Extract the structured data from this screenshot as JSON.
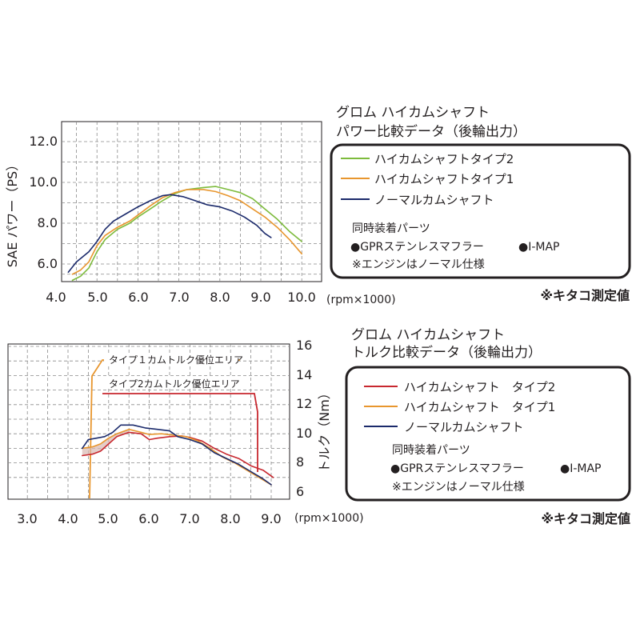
{
  "chart_data": [
    {
      "type": "line",
      "title_lines": [
        "グロム ハイカムシャフト",
        "パワー比較データ（後輪出力）"
      ],
      "xlabel": "(rpm×1000)",
      "ylabel": "SAE パワー（PS）",
      "x_ticks": [
        "4.0",
        "5.0",
        "6.0",
        "7.0",
        "8.0",
        "9.0",
        "10.0"
      ],
      "y_ticks": [
        "6.0",
        "8.0",
        "10.0",
        "12.0"
      ],
      "xlim": [
        4.0,
        10.3
      ],
      "ylim": [
        5.2,
        13.2
      ],
      "grid": true,
      "legend_position": "right",
      "series": [
        {
          "name": "ハイカムシャフトタイプ2",
          "color": "#7dbb3c",
          "points": [
            [
              4.4,
              5.2
            ],
            [
              4.6,
              5.4
            ],
            [
              4.8,
              5.8
            ],
            [
              5.0,
              6.6
            ],
            [
              5.2,
              7.2
            ],
            [
              5.5,
              7.7
            ],
            [
              5.8,
              8.0
            ],
            [
              6.0,
              8.3
            ],
            [
              6.3,
              8.7
            ],
            [
              6.6,
              9.1
            ],
            [
              6.9,
              9.45
            ],
            [
              7.2,
              9.65
            ],
            [
              7.6,
              9.75
            ],
            [
              7.9,
              9.8
            ],
            [
              8.2,
              9.65
            ],
            [
              8.5,
              9.5
            ],
            [
              8.8,
              9.2
            ],
            [
              9.1,
              8.7
            ],
            [
              9.4,
              8.2
            ],
            [
              9.7,
              7.6
            ],
            [
              10.0,
              7.1
            ]
          ]
        },
        {
          "name": "ハイカムシャフトタイプ1",
          "color": "#e8962e",
          "points": [
            [
              4.4,
              5.5
            ],
            [
              4.6,
              5.7
            ],
            [
              4.8,
              6.1
            ],
            [
              5.0,
              6.9
            ],
            [
              5.2,
              7.4
            ],
            [
              5.5,
              7.8
            ],
            [
              5.8,
              8.1
            ],
            [
              6.0,
              8.4
            ],
            [
              6.3,
              8.85
            ],
            [
              6.6,
              9.25
            ],
            [
              6.9,
              9.5
            ],
            [
              7.2,
              9.65
            ],
            [
              7.6,
              9.65
            ],
            [
              7.9,
              9.55
            ],
            [
              8.2,
              9.35
            ],
            [
              8.5,
              9.1
            ],
            [
              8.8,
              8.7
            ],
            [
              9.1,
              8.3
            ],
            [
              9.4,
              7.8
            ],
            [
              9.7,
              7.2
            ],
            [
              10.0,
              6.5
            ]
          ]
        },
        {
          "name": "ノーマルカムシャフト",
          "color": "#1b2a6b",
          "points": [
            [
              4.3,
              5.6
            ],
            [
              4.5,
              6.1
            ],
            [
              4.8,
              6.6
            ],
            [
              5.0,
              7.1
            ],
            [
              5.2,
              7.7
            ],
            [
              5.4,
              8.1
            ],
            [
              5.7,
              8.45
            ],
            [
              6.0,
              8.8
            ],
            [
              6.3,
              9.1
            ],
            [
              6.6,
              9.35
            ],
            [
              6.8,
              9.4
            ],
            [
              7.1,
              9.3
            ],
            [
              7.4,
              9.1
            ],
            [
              7.7,
              8.9
            ],
            [
              8.0,
              8.8
            ],
            [
              8.3,
              8.6
            ],
            [
              8.6,
              8.3
            ],
            [
              8.9,
              7.9
            ],
            [
              9.1,
              7.5
            ],
            [
              9.25,
              7.3
            ]
          ]
        }
      ],
      "legend_title": "同時装着パーツ",
      "parts": [
        "●GPRステンレスマフラー",
        "●I-MAP"
      ],
      "note": "※エンジンはノーマル仕様",
      "source": "※キタコ測定値"
    },
    {
      "type": "line",
      "title_lines": [
        "グロム ハイカムシャフト",
        "トルク比較データ（後輪出力）"
      ],
      "xlabel": "(rpm×1000)",
      "ylabel": "トルク（Nm）",
      "x_ticks": [
        "3.0",
        "4.0",
        "5.0",
        "6.0",
        "7.0",
        "8.0",
        "9.0"
      ],
      "y_ticks": [
        "6",
        "8",
        "10",
        "12",
        "14",
        "16"
      ],
      "xlim": [
        2.8,
        9.2
      ],
      "ylim": [
        6.0,
        16.0
      ],
      "grid": true,
      "legend_position": "right",
      "annotations": [
        "タイプ１カムトルク優位エリア",
        "タイプ2カムトルク優位エリア"
      ],
      "series": [
        {
          "name": "ハイカムシャフト　タイプ2",
          "color": "#c8282f",
          "points": [
            [
              4.35,
              8.5
            ],
            [
              4.6,
              8.6
            ],
            [
              4.8,
              8.8
            ],
            [
              5.0,
              9.3
            ],
            [
              5.2,
              9.8
            ],
            [
              5.5,
              10.1
            ],
            [
              5.8,
              10.0
            ],
            [
              6.0,
              9.6
            ],
            [
              6.2,
              9.7
            ],
            [
              6.5,
              9.8
            ],
            [
              6.8,
              9.85
            ],
            [
              7.0,
              9.75
            ],
            [
              7.3,
              9.5
            ],
            [
              7.6,
              9.0
            ],
            [
              7.9,
              8.6
            ],
            [
              8.2,
              8.3
            ],
            [
              8.5,
              7.8
            ],
            [
              8.8,
              7.5
            ],
            [
              9.05,
              7.0
            ]
          ]
        },
        {
          "name": "ハイカムシャフト　タイプ1",
          "color": "#e8962e",
          "points": [
            [
              4.35,
              9.0
            ],
            [
              4.6,
              9.1
            ],
            [
              4.8,
              9.3
            ],
            [
              5.0,
              9.7
            ],
            [
              5.2,
              10.0
            ],
            [
              5.5,
              10.3
            ],
            [
              5.8,
              10.1
            ],
            [
              6.0,
              9.95
            ],
            [
              6.3,
              10.0
            ],
            [
              6.6,
              9.9
            ],
            [
              6.9,
              9.8
            ],
            [
              7.2,
              9.5
            ],
            [
              7.5,
              9.0
            ],
            [
              7.8,
              8.4
            ],
            [
              8.1,
              8.0
            ],
            [
              8.4,
              7.5
            ],
            [
              8.7,
              7.0
            ],
            [
              9.0,
              6.5
            ]
          ]
        },
        {
          "name": "ノーマルカムシャフト",
          "color": "#1b2a6b",
          "points": [
            [
              4.35,
              9.0
            ],
            [
              4.5,
              9.6
            ],
            [
              4.7,
              9.7
            ],
            [
              4.9,
              9.8
            ],
            [
              5.1,
              10.1
            ],
            [
              5.3,
              10.6
            ],
            [
              5.6,
              10.6
            ],
            [
              5.9,
              10.4
            ],
            [
              6.2,
              10.3
            ],
            [
              6.5,
              10.2
            ],
            [
              6.7,
              9.8
            ],
            [
              7.0,
              9.6
            ],
            [
              7.3,
              9.3
            ],
            [
              7.6,
              8.7
            ],
            [
              7.9,
              8.3
            ],
            [
              8.2,
              7.9
            ],
            [
              8.5,
              7.4
            ],
            [
              8.8,
              6.9
            ],
            [
              9.0,
              6.5
            ]
          ]
        }
      ],
      "legend_title": "同時装着パーツ",
      "parts": [
        "●GPRステンレスマフラー",
        "●I-MAP"
      ],
      "note": "※エンジンはノーマル仕様",
      "source": "※キタコ測定値"
    }
  ]
}
